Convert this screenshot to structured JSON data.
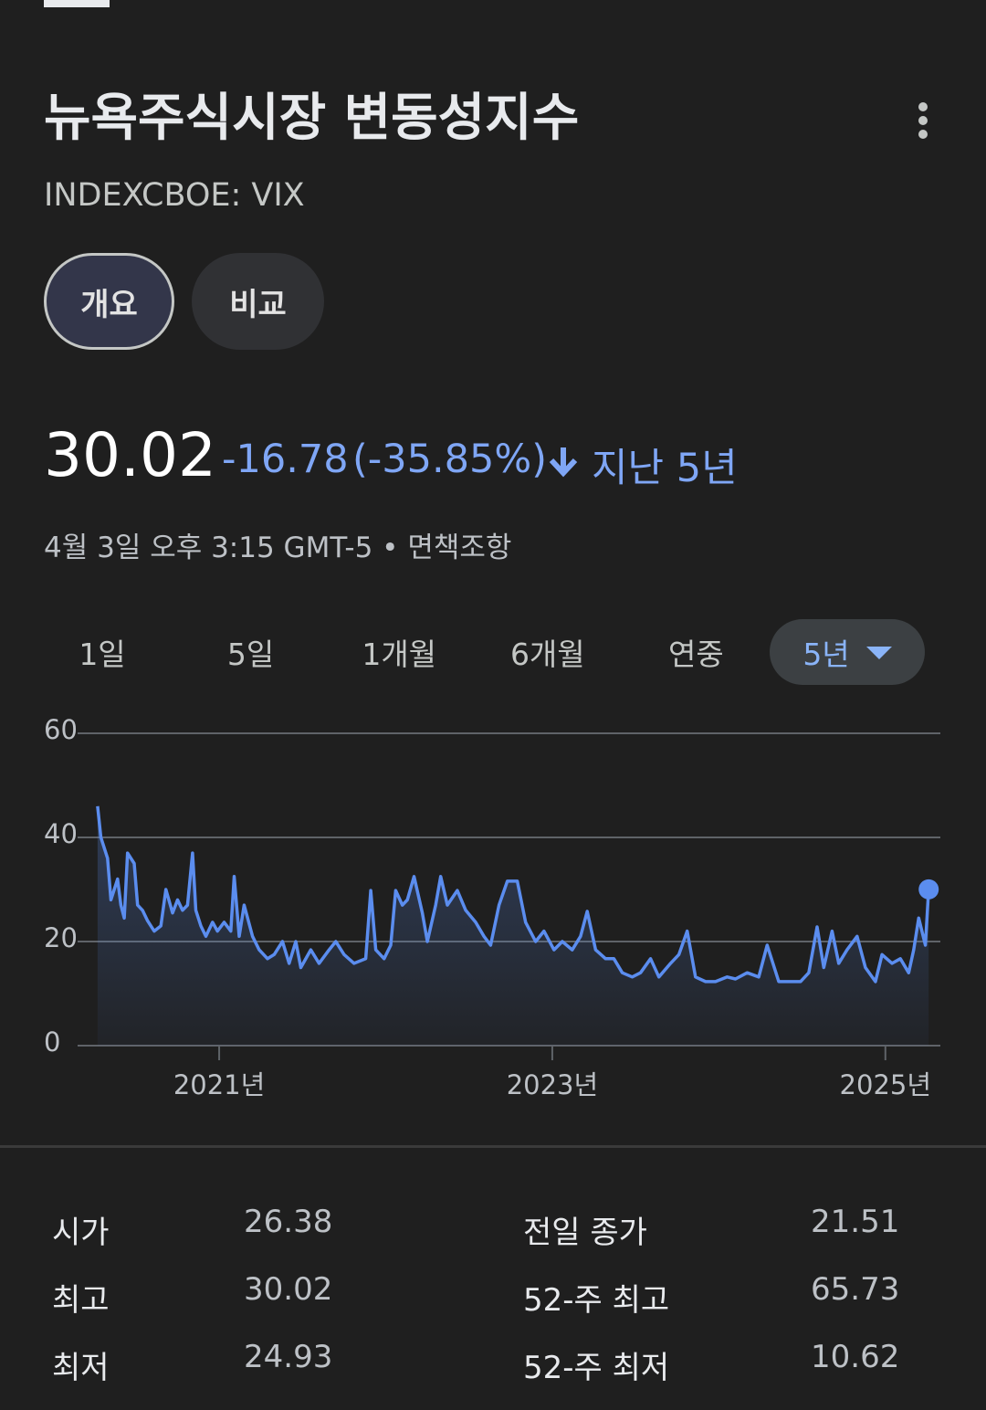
{
  "header": {
    "title": "뉴욕주식시장 변동성지수",
    "ticker": "INDEXCBOE: VIX"
  },
  "tabs": [
    "개요",
    "비교"
  ],
  "selected_tab": 0,
  "quote": {
    "price": "30.02",
    "change": "-16.78",
    "change_percent": "(-35.85%)",
    "period": "지난 5년",
    "timestamp": "4월 3일 오후 3:15 GMT-5",
    "disclaimer": "면책조항"
  },
  "ranges": [
    "1일",
    "5일",
    "1개월",
    "6개월",
    "연중",
    "5년"
  ],
  "selected_range": 5,
  "chart_data": {
    "type": "line",
    "color": "#5b8def",
    "area": true,
    "grid": true,
    "x": [
      2020.27,
      2020.29,
      2020.33,
      2020.35,
      2020.39,
      2020.41,
      2020.43,
      2020.45,
      2020.49,
      2020.51,
      2020.54,
      2020.57,
      2020.61,
      2020.65,
      2020.68,
      2020.72,
      2020.75,
      2020.78,
      2020.81,
      2020.84,
      2020.86,
      2020.89,
      2020.92,
      2020.96,
      2020.99,
      2021.03,
      2021.07,
      2021.09,
      2021.12,
      2021.15,
      2021.2,
      2021.24,
      2021.29,
      2021.33,
      2021.38,
      2021.42,
      2021.46,
      2021.49,
      2021.55,
      2021.6,
      2021.66,
      2021.7,
      2021.75,
      2021.81,
      2021.88,
      2021.91,
      2021.94,
      2021.99,
      2022.03,
      2022.06,
      2022.1,
      2022.13,
      2022.17,
      2022.22,
      2022.25,
      2022.3,
      2022.33,
      2022.37,
      2022.43,
      2022.48,
      2022.54,
      2022.59,
      2022.63,
      2022.68,
      2022.73,
      2022.79,
      2022.84,
      2022.9,
      2022.95,
      2023.01,
      2023.06,
      2023.12,
      2023.17,
      2023.21,
      2023.26,
      2023.32,
      2023.37,
      2023.42,
      2023.48,
      2023.53,
      2023.59,
      2023.64,
      2023.71,
      2023.76,
      2023.81,
      2023.86,
      2023.92,
      2023.98,
      2024.05,
      2024.1,
      2024.17,
      2024.24,
      2024.29,
      2024.36,
      2024.42,
      2024.49,
      2024.54,
      2024.59,
      2024.63,
      2024.68,
      2024.72,
      2024.77,
      2024.83,
      2024.88,
      2024.94,
      2024.98,
      2025.04,
      2025.09,
      2025.14,
      2025.17,
      2025.2,
      2025.24,
      2025.26
    ],
    "values": [
      46,
      40,
      36,
      28,
      32,
      27,
      24.5,
      37,
      35,
      27,
      26,
      24,
      22,
      23,
      30,
      25.5,
      28,
      26,
      27,
      37,
      26,
      23,
      21,
      23.7,
      22,
      23.7,
      22,
      32.5,
      21,
      27,
      21,
      18.4,
      16.7,
      17.5,
      20,
      15.8,
      20,
      15,
      18.4,
      15.8,
      18.4,
      20,
      17.5,
      15.8,
      16.7,
      29.8,
      18.4,
      16.7,
      19.3,
      29.8,
      27,
      28,
      32.5,
      25.5,
      20,
      27,
      32.5,
      27,
      29.8,
      26,
      23.7,
      21,
      19.3,
      27,
      31.6,
      31.6,
      23.7,
      20,
      22,
      18.4,
      20,
      18.4,
      21,
      25.8,
      18.4,
      16.7,
      16.7,
      14,
      13.2,
      14,
      16.7,
      13.2,
      15.8,
      17.5,
      22,
      13.2,
      12.3,
      12.3,
      13.2,
      12.8,
      14,
      13.2,
      19.3,
      12.3,
      12.3,
      12.3,
      14,
      22.8,
      15,
      22,
      15.8,
      18.4,
      21,
      15,
      12.3,
      17.5,
      15.8,
      16.7,
      14,
      18.4,
      24.5,
      19.3,
      30.02
    ],
    "xlim": [
      2020.15,
      2025.33
    ],
    "ylim": [
      0,
      60
    ],
    "xticks": [
      {
        "value": 2021,
        "label": "2021년"
      },
      {
        "value": 2023,
        "label": "2023년"
      },
      {
        "value": 2025,
        "label": "2025년"
      }
    ],
    "yticks": [
      0,
      20,
      40,
      60
    ]
  },
  "stats": {
    "rows": [
      [
        "시가",
        "26.38",
        "전일 종가",
        "21.51"
      ],
      [
        "최고",
        "30.02",
        "52-주 최고",
        "65.73"
      ],
      [
        "최저",
        "24.93",
        "52-주 최저",
        "10.62"
      ]
    ]
  }
}
